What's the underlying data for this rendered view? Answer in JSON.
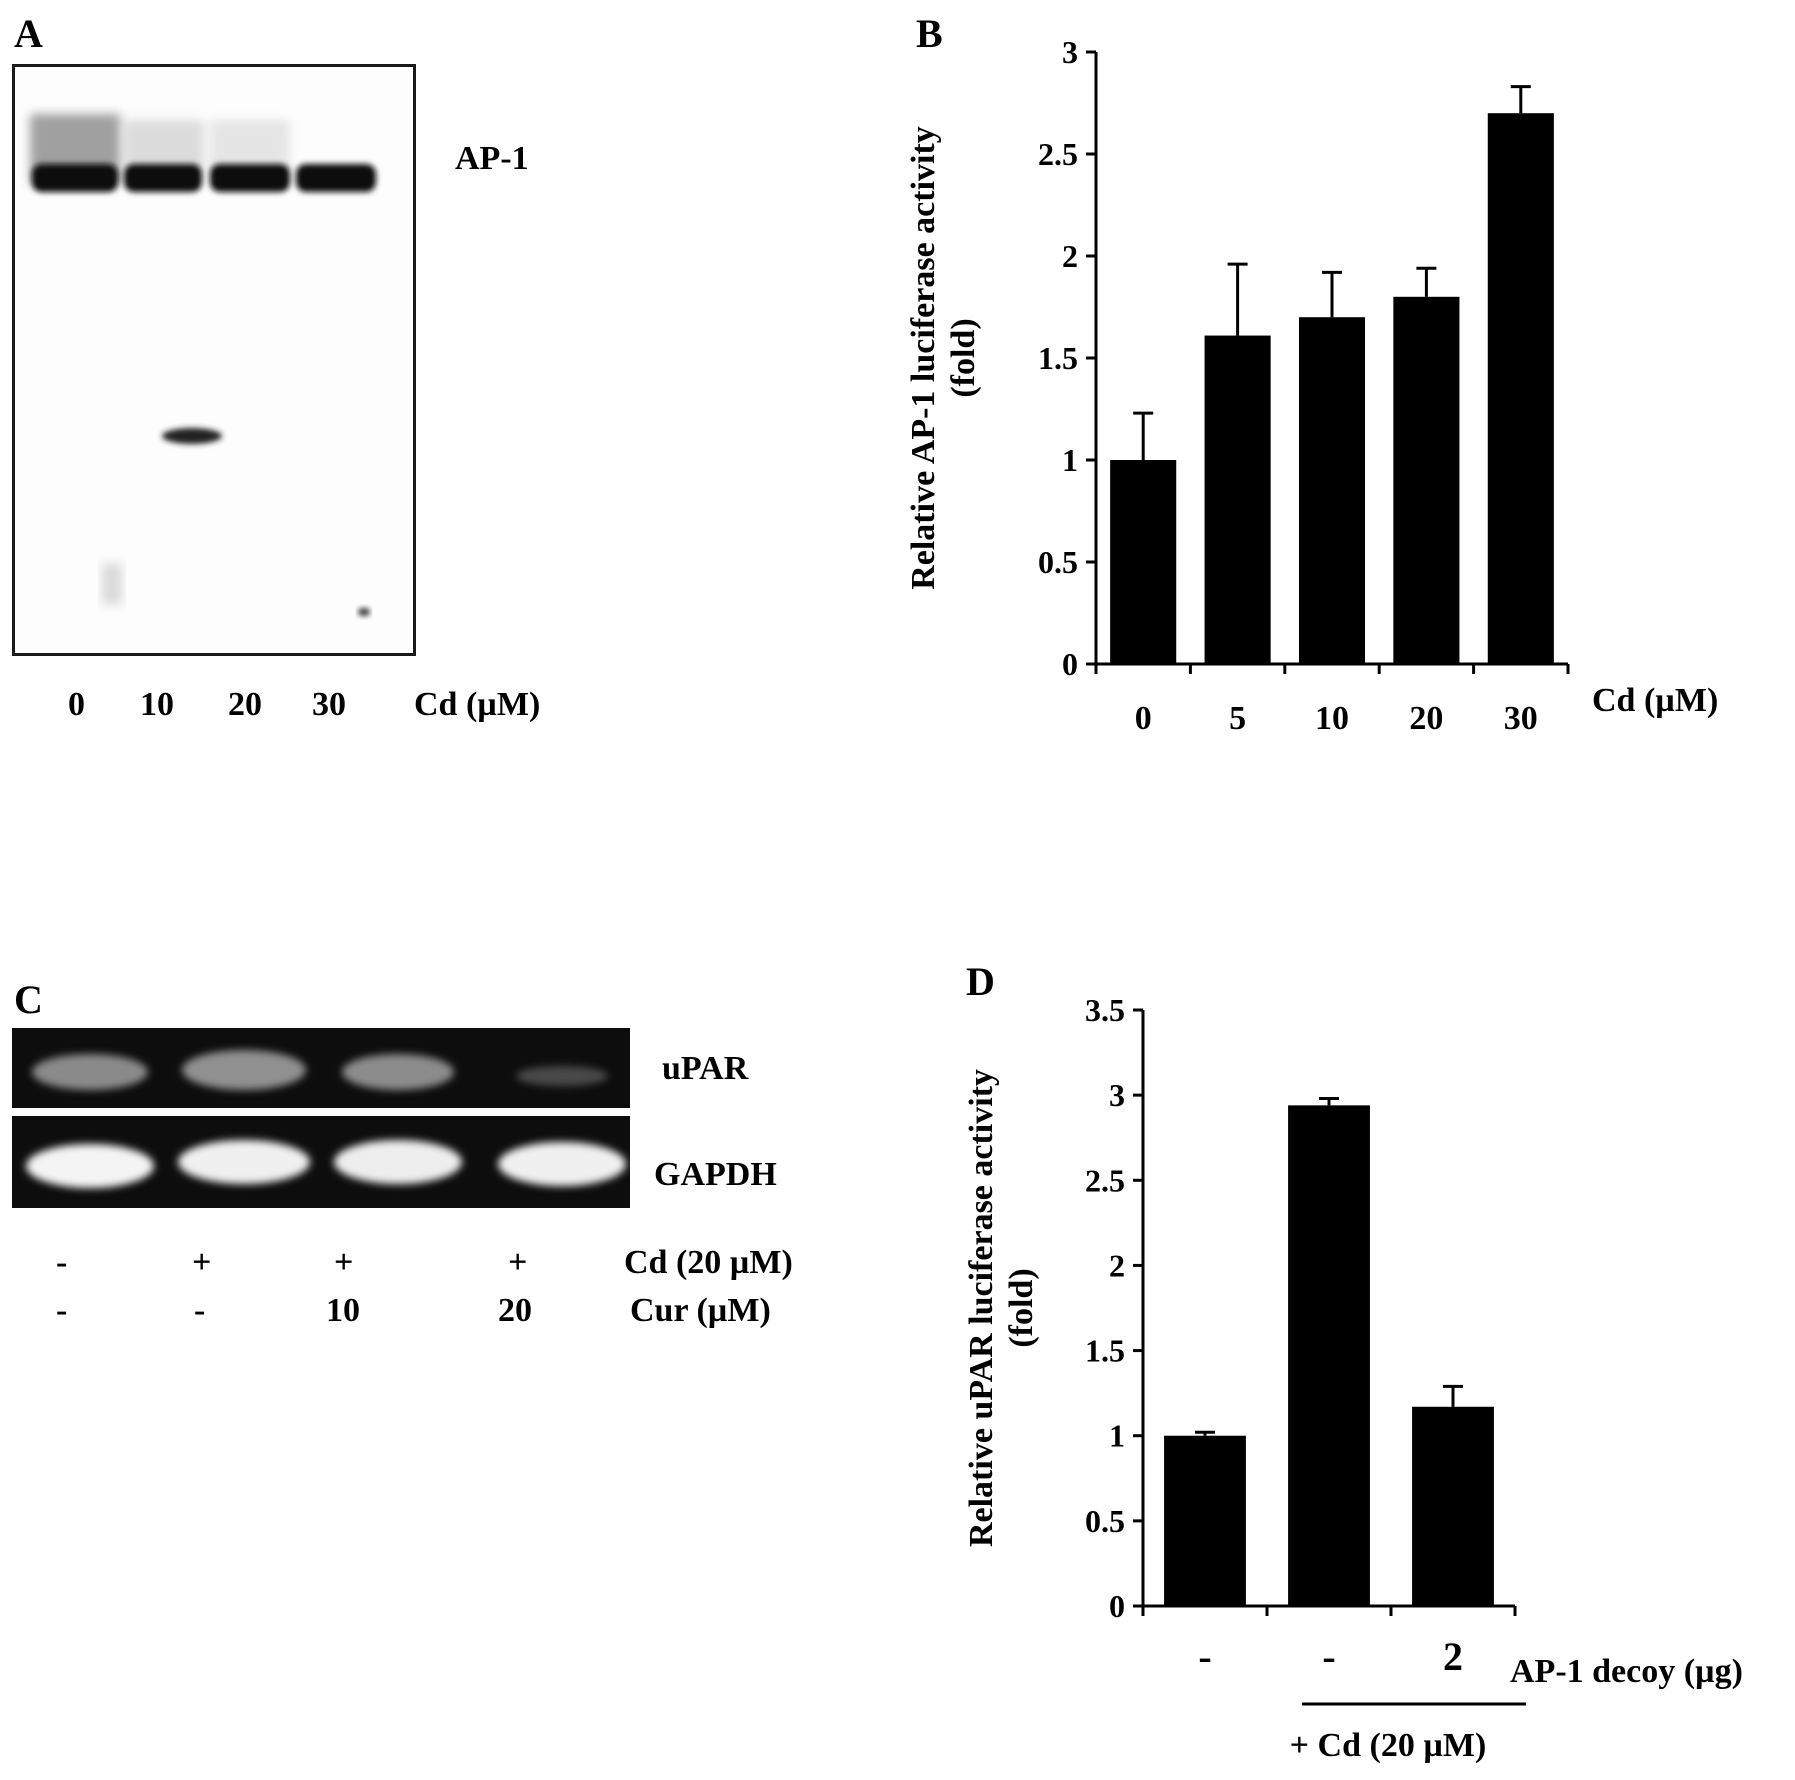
{
  "panel_a": {
    "letter": "A",
    "band_label": "AP-1",
    "lanes": [
      "0",
      "10",
      "20",
      "30"
    ],
    "lane_unit": "Cd (µM)"
  },
  "panel_c": {
    "letter": "C",
    "rows": [
      "uPAR",
      "GAPDH"
    ],
    "cd_row": {
      "values": [
        "-",
        "+",
        "+",
        "+"
      ],
      "label": "Cd (20 µM)"
    },
    "cur_row": {
      "values": [
        "-",
        "-",
        "10",
        "20"
      ],
      "label": "Cur (µM)"
    }
  },
  "chart_data": [
    {
      "panel": "B",
      "type": "bar",
      "categories": [
        "0",
        "5",
        "10",
        "20",
        "30"
      ],
      "values": [
        1.0,
        1.61,
        1.7,
        1.8,
        2.7
      ],
      "errors": [
        0.23,
        0.35,
        0.22,
        0.14,
        0.13
      ],
      "ylabel_line1": "Relative  AP-1 luciferase activity",
      "ylabel_line2": "(fold)",
      "xlabel": "Cd (µM)",
      "ylim": [
        0,
        3
      ],
      "yticks": [
        "0",
        "0.5",
        "1",
        "1.5",
        "2",
        "2.5",
        "3"
      ],
      "grid": false,
      "color": "#000000"
    },
    {
      "panel": "D",
      "type": "bar",
      "categories": [
        "-",
        "-",
        "2"
      ],
      "values": [
        1.0,
        2.94,
        1.17
      ],
      "errors": [
        0.02,
        0.04,
        0.12
      ],
      "ylabel_line1": "Relative uPAR luciferase  activity",
      "ylabel_line2": "(fold)",
      "xlabel": "AP-1 decoy (µg)",
      "group_label": "+ Cd (20 µM)",
      "ylim": [
        0,
        3.5
      ],
      "yticks": [
        "0",
        "0.5",
        "1",
        "1.5",
        "2",
        "2.5",
        "3",
        "3.5"
      ],
      "grid": false,
      "color": "#000000"
    }
  ]
}
